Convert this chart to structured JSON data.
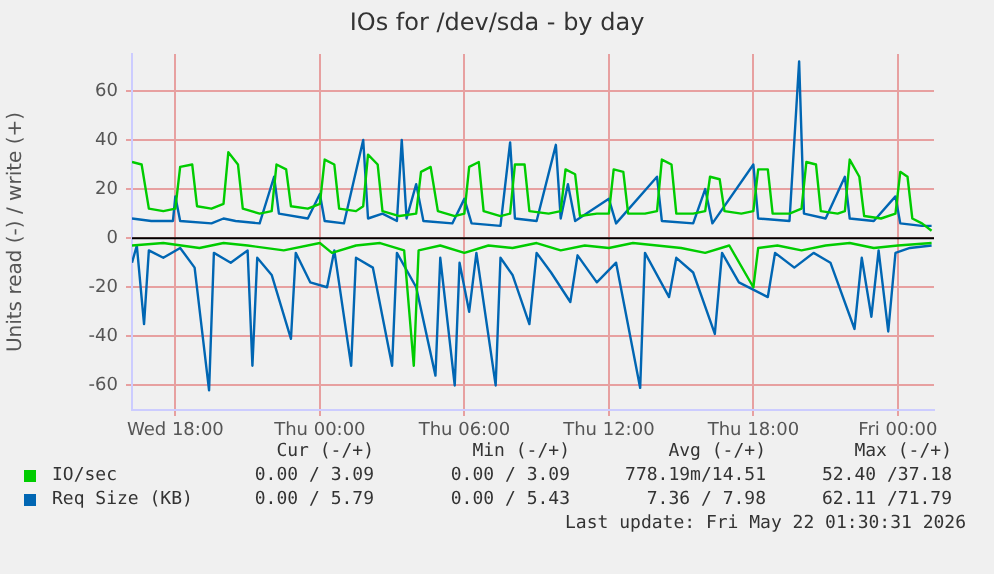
{
  "chart_data": {
    "type": "line",
    "title": "IOs for /dev/sda - by day",
    "ylabel": "Units read (-) / write (+)",
    "xlim": [
      "2026-05-20T16:12",
      "2026-05-22T01:30"
    ],
    "xticks": [
      {
        "value": "2026-05-20T18:00",
        "label": "Wed 18:00"
      },
      {
        "value": "2026-05-21T00:00",
        "label": "Thu 00:00"
      },
      {
        "value": "2026-05-21T06:00",
        "label": "Thu 06:00"
      },
      {
        "value": "2026-05-21T12:00",
        "label": "Thu 12:00"
      },
      {
        "value": "2026-05-21T18:00",
        "label": "Thu 18:00"
      },
      {
        "value": "2026-05-22T00:00",
        "label": "Fri 00:00"
      }
    ],
    "ylim": [
      -70,
      75
    ],
    "yticks": [
      -60,
      -40,
      -20,
      0,
      20,
      40,
      60
    ],
    "grid": true,
    "legend": "bottom",
    "series": [
      {
        "name": "IO/sec",
        "color": "#00cc00",
        "x": [
          "2026-05-20T16:12",
          "2026-05-20T16:36",
          "2026-05-20T16:54",
          "2026-05-20T17:30",
          "2026-05-20T18:00",
          "2026-05-20T18:12",
          "2026-05-20T18:42",
          "2026-05-20T18:54",
          "2026-05-20T19:30",
          "2026-05-20T20:00",
          "2026-05-20T20:12",
          "2026-05-20T20:36",
          "2026-05-20T20:48",
          "2026-05-20T21:30",
          "2026-05-20T22:00",
          "2026-05-20T22:12",
          "2026-05-20T22:36",
          "2026-05-20T22:48",
          "2026-05-20T23:30",
          "2026-05-21T00:00",
          "2026-05-21T00:12",
          "2026-05-21T00:36",
          "2026-05-21T00:48",
          "2026-05-21T01:30",
          "2026-05-21T01:48",
          "2026-05-21T02:00",
          "2026-05-21T02:24",
          "2026-05-21T02:36",
          "2026-05-21T03:18",
          "2026-05-21T04:00",
          "2026-05-21T04:12",
          "2026-05-21T04:36",
          "2026-05-21T04:54",
          "2026-05-21T05:36",
          "2026-05-21T06:00",
          "2026-05-21T06:12",
          "2026-05-21T06:36",
          "2026-05-21T06:48",
          "2026-05-21T07:30",
          "2026-05-21T07:54",
          "2026-05-21T08:06",
          "2026-05-21T08:30",
          "2026-05-21T08:42",
          "2026-05-21T09:30",
          "2026-05-21T10:00",
          "2026-05-21T10:12",
          "2026-05-21T10:36",
          "2026-05-21T10:48",
          "2026-05-21T11:30",
          "2026-05-21T12:00",
          "2026-05-21T12:12",
          "2026-05-21T12:36",
          "2026-05-21T12:48",
          "2026-05-21T13:30",
          "2026-05-21T14:00",
          "2026-05-21T14:12",
          "2026-05-21T14:36",
          "2026-05-21T14:48",
          "2026-05-21T15:30",
          "2026-05-21T16:00",
          "2026-05-21T16:12",
          "2026-05-21T16:36",
          "2026-05-21T16:48",
          "2026-05-21T17:30",
          "2026-05-21T18:00",
          "2026-05-21T18:12",
          "2026-05-21T18:36",
          "2026-05-21T18:48",
          "2026-05-21T19:30",
          "2026-05-21T20:00",
          "2026-05-21T20:12",
          "2026-05-21T20:36",
          "2026-05-21T20:48",
          "2026-05-21T21:30",
          "2026-05-21T21:48",
          "2026-05-21T22:00",
          "2026-05-21T22:24",
          "2026-05-21T22:36",
          "2026-05-21T23:18",
          "2026-05-21T23:54",
          "2026-05-22T00:06",
          "2026-05-22T00:24",
          "2026-05-22T00:36",
          "2026-05-22T01:00",
          "2026-05-22T01:24"
        ],
        "values": [
          31,
          30,
          12,
          11,
          12,
          29,
          30,
          13,
          12,
          14,
          35,
          30,
          12,
          10,
          11,
          30,
          28,
          13,
          12,
          14,
          32,
          30,
          12,
          11,
          13,
          34,
          30,
          11,
          9,
          10,
          27,
          29,
          11,
          9,
          10,
          29,
          31,
          11,
          9,
          10,
          30,
          30,
          11,
          10,
          11,
          28,
          26,
          9,
          10,
          10,
          28,
          27,
          10,
          10,
          11,
          32,
          30,
          10,
          10,
          11,
          25,
          24,
          11,
          10,
          11,
          28,
          28,
          10,
          10,
          12,
          31,
          30,
          11,
          10,
          11,
          32,
          25,
          9,
          8,
          10,
          27,
          25,
          8,
          6,
          3
        ]
      },
      {
        "color": "#00cc00",
        "x": [
          "2026-05-20T16:12",
          "2026-05-20T17:30",
          "2026-05-20T19:00",
          "2026-05-20T20:00",
          "2026-05-20T21:00",
          "2026-05-20T22:30",
          "2026-05-21T00:00",
          "2026-05-21T00:30",
          "2026-05-21T01:30",
          "2026-05-21T02:30",
          "2026-05-21T03:30",
          "2026-05-21T03:54",
          "2026-05-21T04:06",
          "2026-05-21T05:00",
          "2026-05-21T06:00",
          "2026-05-21T07:00",
          "2026-05-21T08:00",
          "2026-05-21T09:00",
          "2026-05-21T10:00",
          "2026-05-21T11:00",
          "2026-05-21T12:00",
          "2026-05-21T13:00",
          "2026-05-21T14:00",
          "2026-05-21T15:00",
          "2026-05-21T16:00",
          "2026-05-21T17:00",
          "2026-05-21T18:00",
          "2026-05-21T18:12",
          "2026-05-21T19:00",
          "2026-05-21T20:00",
          "2026-05-21T21:00",
          "2026-05-21T22:00",
          "2026-05-21T23:00",
          "2026-05-22T00:00",
          "2026-05-22T01:24"
        ],
        "values": [
          -3,
          -2,
          -4,
          -2,
          -3,
          -5,
          -2,
          -6,
          -3,
          -2,
          -5,
          -52,
          -5,
          -3,
          -6,
          -3,
          -4,
          -2,
          -5,
          -3,
          -4,
          -2,
          -3,
          -4,
          -6,
          -3,
          -20,
          -4,
          -3,
          -5,
          -3,
          -2,
          -4,
          -3,
          -2
        ]
      },
      {
        "name": "Req Size (KB)",
        "color": "#0066b3",
        "x": [
          "2026-05-20T16:12",
          "2026-05-20T17:00",
          "2026-05-20T17:54",
          "2026-05-20T18:00",
          "2026-05-20T18:12",
          "2026-05-20T19:30",
          "2026-05-20T20:00",
          "2026-05-20T20:30",
          "2026-05-20T21:30",
          "2026-05-20T22:06",
          "2026-05-20T22:18",
          "2026-05-20T23:30",
          "2026-05-21T00:00",
          "2026-05-21T00:12",
          "2026-05-21T01:00",
          "2026-05-21T01:48",
          "2026-05-21T02:00",
          "2026-05-21T02:36",
          "2026-05-21T03:12",
          "2026-05-21T03:24",
          "2026-05-21T03:36",
          "2026-05-21T04:00",
          "2026-05-21T04:18",
          "2026-05-21T05:30",
          "2026-05-21T06:00",
          "2026-05-21T06:18",
          "2026-05-21T07:30",
          "2026-05-21T07:54",
          "2026-05-21T08:06",
          "2026-05-21T09:00",
          "2026-05-21T09:48",
          "2026-05-21T10:00",
          "2026-05-21T10:18",
          "2026-05-21T10:36",
          "2026-05-21T12:00",
          "2026-05-21T12:18",
          "2026-05-21T14:00",
          "2026-05-21T14:12",
          "2026-05-21T15:30",
          "2026-05-21T16:00",
          "2026-05-21T16:18",
          "2026-05-21T18:00",
          "2026-05-21T18:12",
          "2026-05-21T19:30",
          "2026-05-21T19:54",
          "2026-05-21T20:06",
          "2026-05-21T21:00",
          "2026-05-21T21:48",
          "2026-05-21T22:00",
          "2026-05-21T23:00",
          "2026-05-21T23:54",
          "2026-05-22T00:06",
          "2026-05-22T01:00",
          "2026-05-22T01:24"
        ],
        "values": [
          8,
          7,
          7,
          17,
          7,
          6,
          8,
          7,
          6,
          25,
          10,
          8,
          18,
          7,
          6,
          40,
          8,
          10,
          7,
          40,
          8,
          22,
          7,
          6,
          16,
          6,
          5,
          39,
          8,
          7,
          38,
          8,
          22,
          7,
          16,
          6,
          25,
          7,
          6,
          20,
          6,
          30,
          8,
          7,
          72,
          10,
          8,
          25,
          8,
          7,
          17,
          6,
          5,
          5
        ]
      },
      {
        "color": "#0066b3",
        "x": [
          "2026-05-20T16:12",
          "2026-05-20T16:24",
          "2026-05-20T16:42",
          "2026-05-20T16:54",
          "2026-05-20T17:30",
          "2026-05-20T18:12",
          "2026-05-20T18:48",
          "2026-05-20T19:24",
          "2026-05-20T19:36",
          "2026-05-20T20:18",
          "2026-05-20T21:00",
          "2026-05-20T21:12",
          "2026-05-20T21:24",
          "2026-05-20T22:00",
          "2026-05-20T22:48",
          "2026-05-20T23:00",
          "2026-05-20T23:36",
          "2026-05-21T00:18",
          "2026-05-21T00:36",
          "2026-05-21T01:18",
          "2026-05-21T01:30",
          "2026-05-21T02:12",
          "2026-05-21T03:00",
          "2026-05-21T03:12",
          "2026-05-21T04:00",
          "2026-05-21T04:48",
          "2026-05-21T05:00",
          "2026-05-21T05:36",
          "2026-05-21T05:48",
          "2026-05-21T06:12",
          "2026-05-21T06:30",
          "2026-05-21T07:18",
          "2026-05-21T07:30",
          "2026-05-21T08:00",
          "2026-05-21T08:42",
          "2026-05-21T09:00",
          "2026-05-21T09:36",
          "2026-05-21T10:24",
          "2026-05-21T10:42",
          "2026-05-21T11:30",
          "2026-05-21T12:18",
          "2026-05-21T13:18",
          "2026-05-21T13:30",
          "2026-05-21T14:30",
          "2026-05-21T14:48",
          "2026-05-21T15:30",
          "2026-05-21T16:24",
          "2026-05-21T16:42",
          "2026-05-21T17:24",
          "2026-05-21T18:36",
          "2026-05-21T18:54",
          "2026-05-21T19:42",
          "2026-05-21T20:30",
          "2026-05-21T21:12",
          "2026-05-21T22:12",
          "2026-05-21T22:30",
          "2026-05-21T22:54",
          "2026-05-21T23:12",
          "2026-05-21T23:36",
          "2026-05-21T23:54",
          "2026-05-22T00:30",
          "2026-05-22T01:24"
        ],
        "values": [
          -10,
          -3,
          -35,
          -5,
          -8,
          -4,
          -12,
          -62,
          -6,
          -10,
          -5,
          -52,
          -8,
          -15,
          -41,
          -6,
          -18,
          -20,
          -5,
          -52,
          -8,
          -12,
          -52,
          -6,
          -20,
          -56,
          -8,
          -60,
          -10,
          -30,
          -6,
          -60,
          -8,
          -15,
          -35,
          -6,
          -14,
          -26,
          -7,
          -18,
          -10,
          -61,
          -6,
          -24,
          -8,
          -14,
          -39,
          -6,
          -18,
          -24,
          -6,
          -12,
          -6,
          -10,
          -37,
          -8,
          -32,
          -5,
          -38,
          -6,
          -4,
          -3
        ]
      }
    ],
    "annotations": [
      "Cur (-/+)",
      "Min (-/+)",
      "Avg (-/+)",
      "Max (-/+)",
      "0.00 / 3.09",
      "0.00 / 3.09",
      "778.19m/14.51",
      "52.40 /37.18",
      "0.00 / 5.79",
      "0.00 / 5.43",
      "7.36 / 7.98",
      "62.11 /71.79",
      "Last update: Fri May 22 01:30:31 2026"
    ]
  }
}
